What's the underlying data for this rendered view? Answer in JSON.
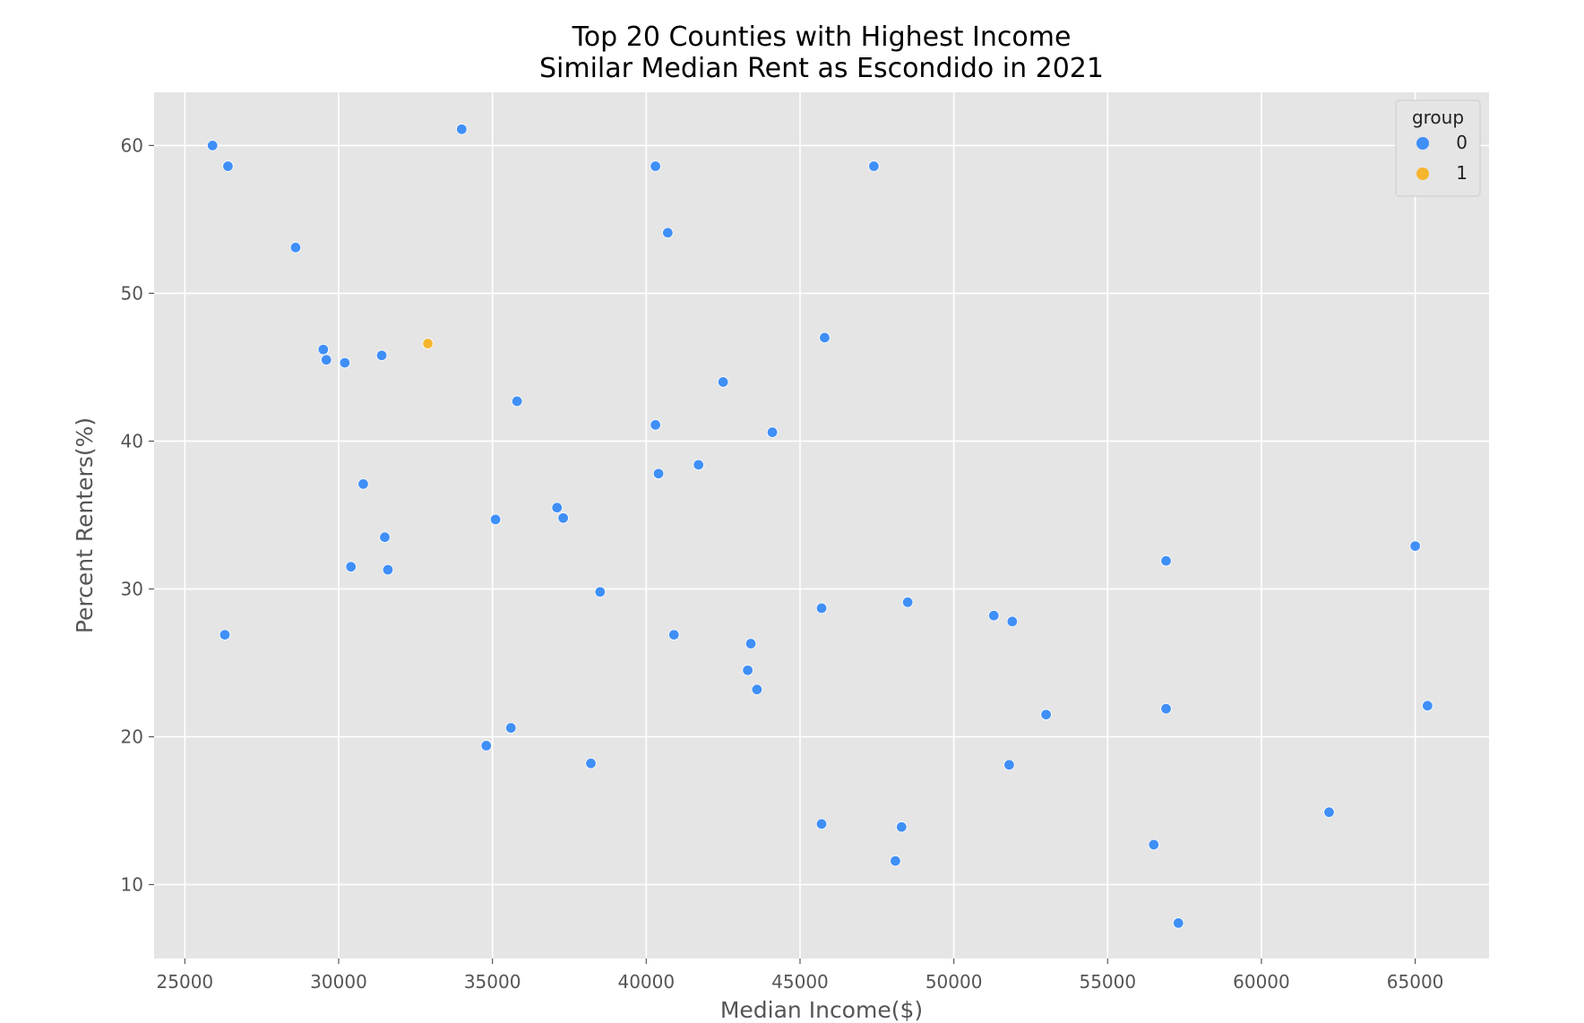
{
  "chart_data": {
    "type": "scatter",
    "title": "Top 20 Counties with Highest Income\nSimilar Median Rent as Escondido in 2021",
    "title_lines": [
      "Top 20 Counties with Highest Income",
      "Similar Median Rent as Escondido in 2021"
    ],
    "xlabel": "Median Income($)",
    "ylabel": "Percent Renters(%)",
    "xlim": [
      24000,
      67400
    ],
    "ylim": [
      5,
      63.6
    ],
    "x_ticks": [
      25000,
      30000,
      35000,
      40000,
      45000,
      50000,
      55000,
      60000,
      65000
    ],
    "y_ticks": [
      10,
      20,
      30,
      40,
      50,
      60
    ],
    "grid": true,
    "legend": {
      "title": "group",
      "position": "top-right",
      "entries": [
        {
          "label": "0",
          "color": "#3f8ff7"
        },
        {
          "label": "1",
          "color": "#f5b52e"
        }
      ]
    },
    "series": [
      {
        "name": "0",
        "color": "#3f8ff7",
        "points": [
          [
            25900,
            60.0
          ],
          [
            26400,
            58.6
          ],
          [
            28600,
            53.1
          ],
          [
            34000,
            61.1
          ],
          [
            40300,
            58.6
          ],
          [
            47400,
            58.6
          ],
          [
            40700,
            54.1
          ],
          [
            29500,
            46.2
          ],
          [
            29600,
            45.5
          ],
          [
            30200,
            45.3
          ],
          [
            31400,
            45.8
          ],
          [
            45800,
            47.0
          ],
          [
            42500,
            44.0
          ],
          [
            35800,
            42.7
          ],
          [
            40300,
            41.1
          ],
          [
            44100,
            40.6
          ],
          [
            41700,
            38.4
          ],
          [
            40400,
            37.8
          ],
          [
            30800,
            37.1
          ],
          [
            37100,
            35.5
          ],
          [
            37300,
            34.8
          ],
          [
            35100,
            34.7
          ],
          [
            31500,
            33.5
          ],
          [
            30400,
            31.5
          ],
          [
            31600,
            31.3
          ],
          [
            38500,
            29.8
          ],
          [
            26300,
            26.9
          ],
          [
            40900,
            26.9
          ],
          [
            45700,
            28.7
          ],
          [
            48500,
            29.1
          ],
          [
            51300,
            28.2
          ],
          [
            51900,
            27.8
          ],
          [
            56900,
            31.9
          ],
          [
            65000,
            32.9
          ],
          [
            43400,
            26.3
          ],
          [
            43300,
            24.5
          ],
          [
            43600,
            23.2
          ],
          [
            53000,
            21.5
          ],
          [
            56900,
            21.9
          ],
          [
            65400,
            22.1
          ],
          [
            35600,
            20.6
          ],
          [
            34800,
            19.4
          ],
          [
            38200,
            18.2
          ],
          [
            51800,
            18.1
          ],
          [
            45700,
            14.1
          ],
          [
            48300,
            13.9
          ],
          [
            48100,
            11.6
          ],
          [
            56500,
            12.7
          ],
          [
            62200,
            14.9
          ],
          [
            57300,
            7.4
          ]
        ]
      },
      {
        "name": "1",
        "color": "#f5b52e",
        "points": [
          [
            32900,
            46.6
          ]
        ]
      }
    ]
  },
  "colors": {
    "plot_background": "#e5e5e5",
    "grid": "#ffffff",
    "axis_text": "#555555"
  }
}
